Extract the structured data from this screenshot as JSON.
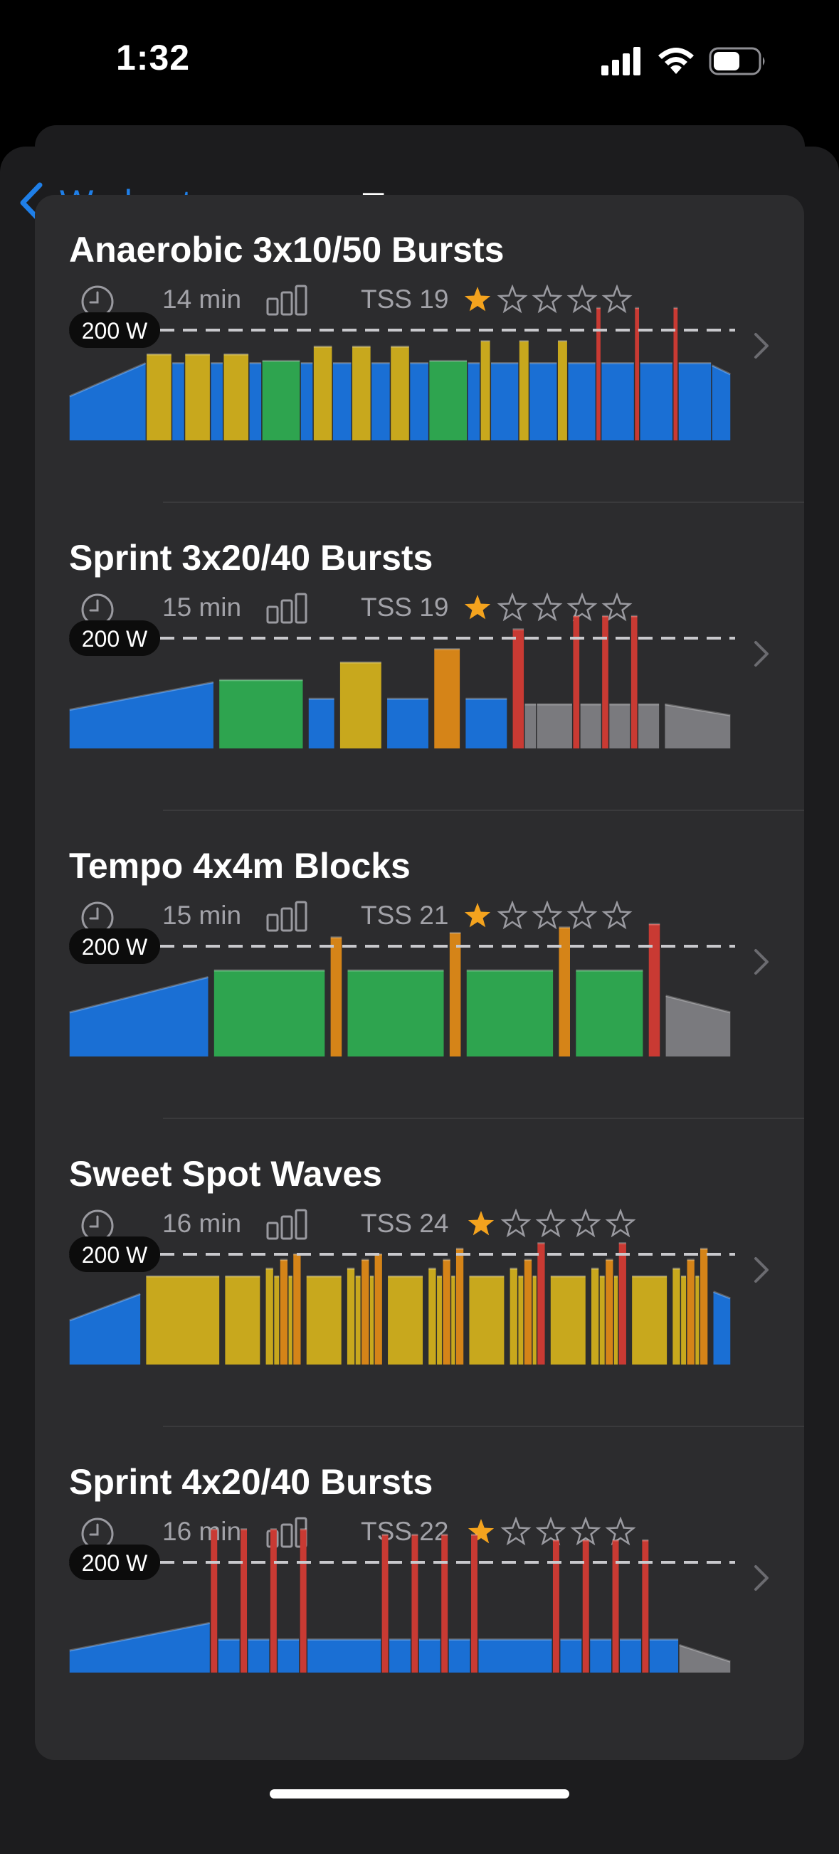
{
  "status": {
    "time": "1:32"
  },
  "nav": {
    "back_label": "Workouts",
    "title": "Tempo"
  },
  "colors": {
    "accent": "#1f7fe8",
    "star": "#f4a31e",
    "zones": {
      "Z1": "#1a6fd4",
      "Z2": "#2ea44f",
      "Z3": "#c8a81d",
      "Z4": "#d58418",
      "Z5": "#c93a33",
      "REC": "#7a7a7e"
    }
  },
  "threshold_label": "200 W",
  "workouts": [
    {
      "title": "Anaerobic 3x10/50 Bursts",
      "duration": "14 min",
      "tss": "TSS 19",
      "rating": 1,
      "segments": [
        {
          "z": "Z1",
          "d": 60,
          "p": 0.4,
          "p2": 0.7
        },
        {
          "z": "Z3",
          "d": 20,
          "p": 0.78
        },
        {
          "z": "Z1",
          "d": 10,
          "p": 0.7
        },
        {
          "z": "Z3",
          "d": 20,
          "p": 0.78
        },
        {
          "z": "Z1",
          "d": 10,
          "p": 0.7
        },
        {
          "z": "Z3",
          "d": 20,
          "p": 0.78
        },
        {
          "z": "Z1",
          "d": 10,
          "p": 0.7
        },
        {
          "z": "Z2",
          "d": 30,
          "p": 0.72
        },
        {
          "z": "Z1",
          "d": 10,
          "p": 0.7
        },
        {
          "z": "Z3",
          "d": 15,
          "p": 0.85
        },
        {
          "z": "Z1",
          "d": 15,
          "p": 0.7
        },
        {
          "z": "Z3",
          "d": 15,
          "p": 0.85
        },
        {
          "z": "Z1",
          "d": 15,
          "p": 0.7
        },
        {
          "z": "Z3",
          "d": 15,
          "p": 0.85
        },
        {
          "z": "Z1",
          "d": 15,
          "p": 0.7
        },
        {
          "z": "Z2",
          "d": 30,
          "p": 0.72
        },
        {
          "z": "Z1",
          "d": 10,
          "p": 0.7
        },
        {
          "z": "Z3",
          "d": 8,
          "p": 0.9
        },
        {
          "z": "Z1",
          "d": 22,
          "p": 0.7
        },
        {
          "z": "Z3",
          "d": 8,
          "p": 0.9
        },
        {
          "z": "Z1",
          "d": 22,
          "p": 0.7
        },
        {
          "z": "Z3",
          "d": 8,
          "p": 0.9
        },
        {
          "z": "Z1",
          "d": 22,
          "p": 0.7
        },
        {
          "z": "Z5",
          "d": 4,
          "p": 1.2
        },
        {
          "z": "Z1",
          "d": 26,
          "p": 0.7
        },
        {
          "z": "Z5",
          "d": 4,
          "p": 1.2
        },
        {
          "z": "Z1",
          "d": 26,
          "p": 0.7
        },
        {
          "z": "Z5",
          "d": 4,
          "p": 1.2
        },
        {
          "z": "Z1",
          "d": 26,
          "p": 0.7
        },
        {
          "z": "Z1",
          "d": 15,
          "p": 0.68,
          "p2": 0.6
        }
      ]
    },
    {
      "title": "Sprint 3x20/40 Bursts",
      "duration": "15 min",
      "tss": "TSS 19",
      "rating": 1,
      "segments": [
        {
          "z": "Z1",
          "d": 120,
          "p": 0.35,
          "p2": 0.6
        },
        {
          "z": "REC",
          "d": 4,
          "p": 0.6
        },
        {
          "z": "Z2",
          "d": 70,
          "p": 0.62
        },
        {
          "z": "REC",
          "d": 4,
          "p": 0.4
        },
        {
          "z": "Z1",
          "d": 22,
          "p": 0.45
        },
        {
          "z": "REC",
          "d": 4,
          "p": 0.4
        },
        {
          "z": "Z3",
          "d": 35,
          "p": 0.78
        },
        {
          "z": "REC",
          "d": 4,
          "p": 0.4
        },
        {
          "z": "Z1",
          "d": 35,
          "p": 0.45
        },
        {
          "z": "REC",
          "d": 4,
          "p": 0.4
        },
        {
          "z": "Z4",
          "d": 22,
          "p": 0.9
        },
        {
          "z": "REC",
          "d": 4,
          "p": 0.4
        },
        {
          "z": "Z1",
          "d": 35,
          "p": 0.45
        },
        {
          "z": "REC",
          "d": 4,
          "p": 0.4
        },
        {
          "z": "Z5",
          "d": 10,
          "p": 1.08
        },
        {
          "z": "REC",
          "d": 10,
          "p": 0.4
        },
        {
          "z": "REC",
          "d": 30,
          "p": 0.4
        },
        {
          "z": "Z5",
          "d": 6,
          "p": 1.2
        },
        {
          "z": "REC",
          "d": 18,
          "p": 0.4
        },
        {
          "z": "Z5",
          "d": 6,
          "p": 1.2
        },
        {
          "z": "REC",
          "d": 18,
          "p": 0.4
        },
        {
          "z": "Z5",
          "d": 6,
          "p": 1.2
        },
        {
          "z": "REC",
          "d": 18,
          "p": 0.4
        },
        {
          "z": "REC",
          "d": 4,
          "p": 0.4
        },
        {
          "z": "REC",
          "d": 55,
          "p": 0.4,
          "p2": 0.3
        }
      ]
    },
    {
      "title": "Tempo 4x4m Blocks",
      "duration": "15 min",
      "tss": "TSS 21",
      "rating": 1,
      "segments": [
        {
          "z": "Z1",
          "d": 115,
          "p": 0.4,
          "p2": 0.72
        },
        {
          "z": "REC",
          "d": 4,
          "p": 0.4
        },
        {
          "z": "Z2",
          "d": 92,
          "p": 0.78
        },
        {
          "z": "REC",
          "d": 4,
          "p": 0.4
        },
        {
          "z": "Z4",
          "d": 10,
          "p": 1.08
        },
        {
          "z": "REC",
          "d": 4,
          "p": 0.4
        },
        {
          "z": "Z2",
          "d": 80,
          "p": 0.78
        },
        {
          "z": "REC",
          "d": 4,
          "p": 0.4
        },
        {
          "z": "Z4",
          "d": 10,
          "p": 1.12
        },
        {
          "z": "REC",
          "d": 4,
          "p": 0.4
        },
        {
          "z": "Z2",
          "d": 72,
          "p": 0.78
        },
        {
          "z": "REC",
          "d": 4,
          "p": 0.4
        },
        {
          "z": "Z4",
          "d": 10,
          "p": 1.17
        },
        {
          "z": "REC",
          "d": 4,
          "p": 0.4
        },
        {
          "z": "Z2",
          "d": 56,
          "p": 0.78
        },
        {
          "z": "REC",
          "d": 4,
          "p": 0.4
        },
        {
          "z": "Z5",
          "d": 10,
          "p": 1.2
        },
        {
          "z": "REC",
          "d": 4,
          "p": 0.4
        },
        {
          "z": "REC",
          "d": 54,
          "p": 0.55,
          "p2": 0.4
        }
      ]
    },
    {
      "title": "Sweet Spot Waves",
      "duration": "16 min",
      "tss": "TSS 24",
      "rating": 1,
      "segments": [
        {
          "z": "Z1",
          "d": 60,
          "p": 0.4,
          "p2": 0.64
        },
        {
          "z": "REC",
          "d": 4,
          "p": 0.4
        },
        {
          "z": "Z3",
          "d": 62,
          "p": 0.8
        },
        {
          "z": "REC",
          "d": 4,
          "p": 0.4
        },
        {
          "z": "Z3",
          "d": 30,
          "p": 0.8
        },
        {
          "z": "REC",
          "d": 4,
          "p": 0.4
        },
        {
          "z": "Z3",
          "d": 7,
          "p": 0.87
        },
        {
          "z": "Z3",
          "d": 5,
          "p": 0.8
        },
        {
          "z": "Z4",
          "d": 7,
          "p": 0.95
        },
        {
          "z": "Z3",
          "d": 4,
          "p": 0.8
        },
        {
          "z": "Z4",
          "d": 7,
          "p": 1.0
        },
        {
          "z": "REC",
          "d": 4,
          "p": 0.4
        },
        {
          "z": "Z3",
          "d": 30,
          "p": 0.8
        },
        {
          "z": "REC",
          "d": 4,
          "p": 0.4
        },
        {
          "z": "Z3",
          "d": 7,
          "p": 0.87
        },
        {
          "z": "Z3",
          "d": 5,
          "p": 0.8
        },
        {
          "z": "Z4",
          "d": 7,
          "p": 0.95
        },
        {
          "z": "Z3",
          "d": 4,
          "p": 0.8
        },
        {
          "z": "Z4",
          "d": 7,
          "p": 1.0
        },
        {
          "z": "REC",
          "d": 4,
          "p": 0.4
        },
        {
          "z": "Z3",
          "d": 30,
          "p": 0.8
        },
        {
          "z": "REC",
          "d": 4,
          "p": 0.4
        },
        {
          "z": "Z3",
          "d": 7,
          "p": 0.87
        },
        {
          "z": "Z3",
          "d": 5,
          "p": 0.8
        },
        {
          "z": "Z4",
          "d": 7,
          "p": 0.95
        },
        {
          "z": "Z3",
          "d": 4,
          "p": 0.8
        },
        {
          "z": "Z4",
          "d": 7,
          "p": 1.05
        },
        {
          "z": "REC",
          "d": 4,
          "p": 0.4
        },
        {
          "z": "Z3",
          "d": 30,
          "p": 0.8
        },
        {
          "z": "REC",
          "d": 4,
          "p": 0.4
        },
        {
          "z": "Z3",
          "d": 7,
          "p": 0.87
        },
        {
          "z": "Z3",
          "d": 5,
          "p": 0.8
        },
        {
          "z": "Z4",
          "d": 7,
          "p": 0.95
        },
        {
          "z": "Z3",
          "d": 4,
          "p": 0.8
        },
        {
          "z": "Z5",
          "d": 7,
          "p": 1.1
        },
        {
          "z": "REC",
          "d": 4,
          "p": 0.4
        },
        {
          "z": "Z3",
          "d": 30,
          "p": 0.8
        },
        {
          "z": "REC",
          "d": 4,
          "p": 0.4
        },
        {
          "z": "Z3",
          "d": 7,
          "p": 0.87
        },
        {
          "z": "Z3",
          "d": 5,
          "p": 0.8
        },
        {
          "z": "Z4",
          "d": 7,
          "p": 0.95
        },
        {
          "z": "Z3",
          "d": 4,
          "p": 0.8
        },
        {
          "z": "Z5",
          "d": 7,
          "p": 1.1
        },
        {
          "z": "REC",
          "d": 4,
          "p": 0.4
        },
        {
          "z": "Z3",
          "d": 30,
          "p": 0.8
        },
        {
          "z": "REC",
          "d": 4,
          "p": 0.4
        },
        {
          "z": "Z3",
          "d": 7,
          "p": 0.87
        },
        {
          "z": "Z3",
          "d": 5,
          "p": 0.8
        },
        {
          "z": "Z4",
          "d": 7,
          "p": 0.95
        },
        {
          "z": "Z3",
          "d": 4,
          "p": 0.8
        },
        {
          "z": "Z4",
          "d": 7,
          "p": 1.05
        },
        {
          "z": "REC",
          "d": 4,
          "p": 0.4
        },
        {
          "z": "Z1",
          "d": 15,
          "p": 0.66,
          "p2": 0.6
        }
      ]
    },
    {
      "title": "Sprint 4x20/40 Bursts",
      "duration": "16 min",
      "tss": "TSS 22",
      "rating": 1,
      "segments": [
        {
          "z": "Z1",
          "d": 190,
          "p": 0.2,
          "p2": 0.45
        },
        {
          "z": "Z5",
          "d": 10,
          "p": 1.3
        },
        {
          "z": "Z1",
          "d": 30,
          "p": 0.3
        },
        {
          "z": "Z5",
          "d": 10,
          "p": 1.3
        },
        {
          "z": "Z1",
          "d": 30,
          "p": 0.3
        },
        {
          "z": "Z5",
          "d": 10,
          "p": 1.3
        },
        {
          "z": "Z1",
          "d": 30,
          "p": 0.3
        },
        {
          "z": "Z5",
          "d": 10,
          "p": 1.3
        },
        {
          "z": "Z1",
          "d": 100,
          "p": 0.3
        },
        {
          "z": "Z5",
          "d": 10,
          "p": 1.25
        },
        {
          "z": "Z1",
          "d": 30,
          "p": 0.3
        },
        {
          "z": "Z5",
          "d": 10,
          "p": 1.25
        },
        {
          "z": "Z1",
          "d": 30,
          "p": 0.3
        },
        {
          "z": "Z5",
          "d": 10,
          "p": 1.25
        },
        {
          "z": "Z1",
          "d": 30,
          "p": 0.3
        },
        {
          "z": "Z5",
          "d": 10,
          "p": 1.25
        },
        {
          "z": "Z1",
          "d": 100,
          "p": 0.3
        },
        {
          "z": "Z5",
          "d": 10,
          "p": 1.2
        },
        {
          "z": "Z1",
          "d": 30,
          "p": 0.3
        },
        {
          "z": "Z5",
          "d": 10,
          "p": 1.2
        },
        {
          "z": "Z1",
          "d": 30,
          "p": 0.3
        },
        {
          "z": "Z5",
          "d": 10,
          "p": 1.2
        },
        {
          "z": "Z1",
          "d": 30,
          "p": 0.3
        },
        {
          "z": "Z5",
          "d": 10,
          "p": 1.2
        },
        {
          "z": "Z1",
          "d": 40,
          "p": 0.3
        },
        {
          "z": "REC",
          "d": 70,
          "p": 0.25,
          "p2": 0.1
        }
      ]
    }
  ]
}
